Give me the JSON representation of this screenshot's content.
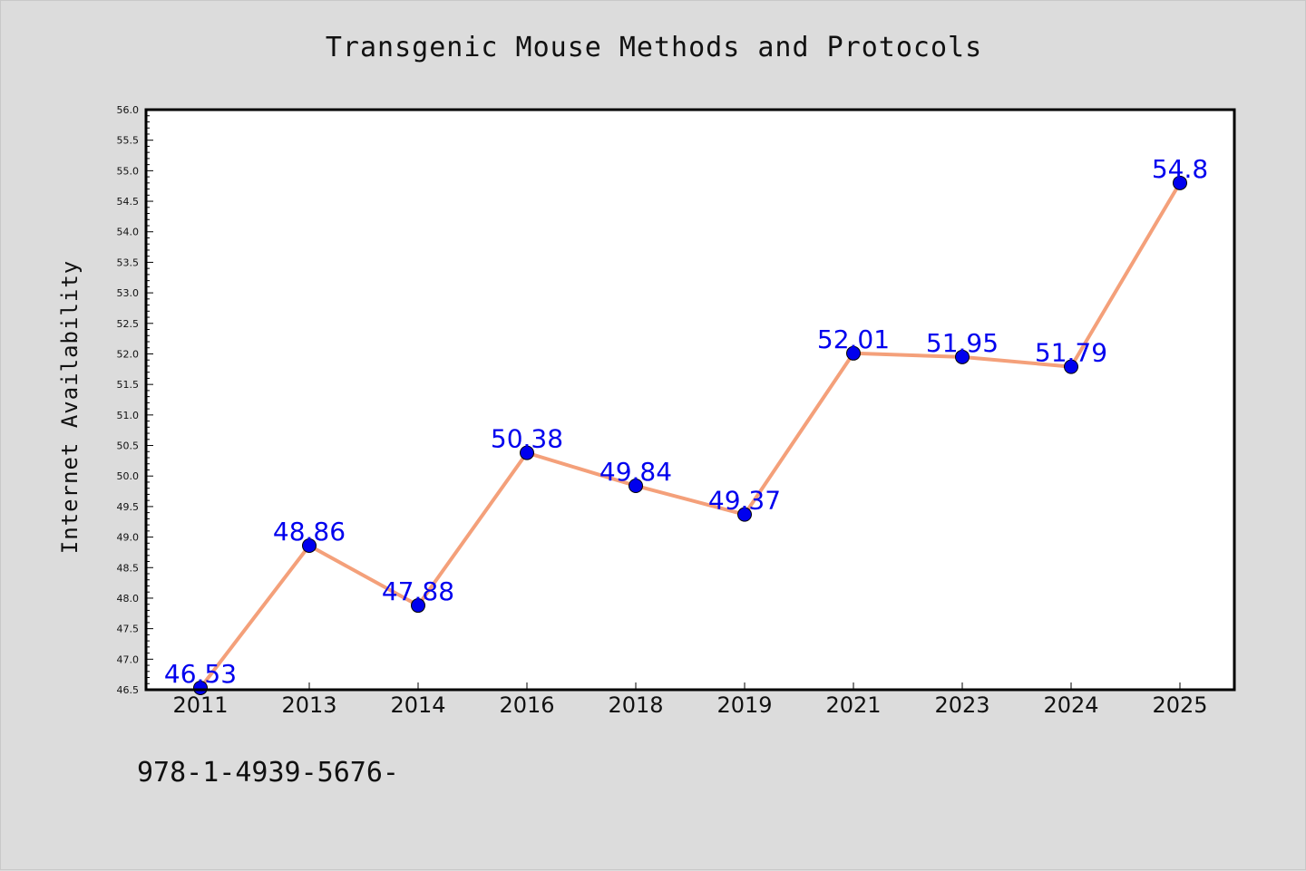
{
  "chart_data": {
    "type": "line",
    "title": "Transgenic Mouse Methods and Protocols",
    "xlabel": "",
    "ylabel": "Internet Availability",
    "categories": [
      "2011",
      "2013",
      "2014",
      "2016",
      "2018",
      "2019",
      "2021",
      "2023",
      "2024",
      "2025"
    ],
    "series": [
      {
        "values": [
          46.53,
          48.86,
          47.88,
          50.38,
          49.84,
          49.37,
          52.01,
          51.95,
          51.79,
          54.8
        ],
        "labels": [
          "46.53",
          "48.86",
          "47.88",
          "50.38",
          "49.84",
          "49.37",
          "52.01",
          "51.95",
          "51.79",
          "54.8"
        ],
        "line_color": "#f4a07a",
        "marker_color": "#0000ee"
      }
    ],
    "ylim": [
      46.5,
      56.0
    ],
    "y_ticks": [
      "46.5",
      "47.0",
      "47.5",
      "48.0",
      "48.5",
      "49.0",
      "49.5",
      "50.0",
      "50.5",
      "51.0",
      "51.5",
      "52.0",
      "52.5",
      "53.0",
      "53.5",
      "54.0",
      "54.5",
      "55.0",
      "55.5",
      "56.0"
    ],
    "grid": false,
    "label_color": "#0000ee"
  },
  "footnote": "978-1-4939-5676-"
}
